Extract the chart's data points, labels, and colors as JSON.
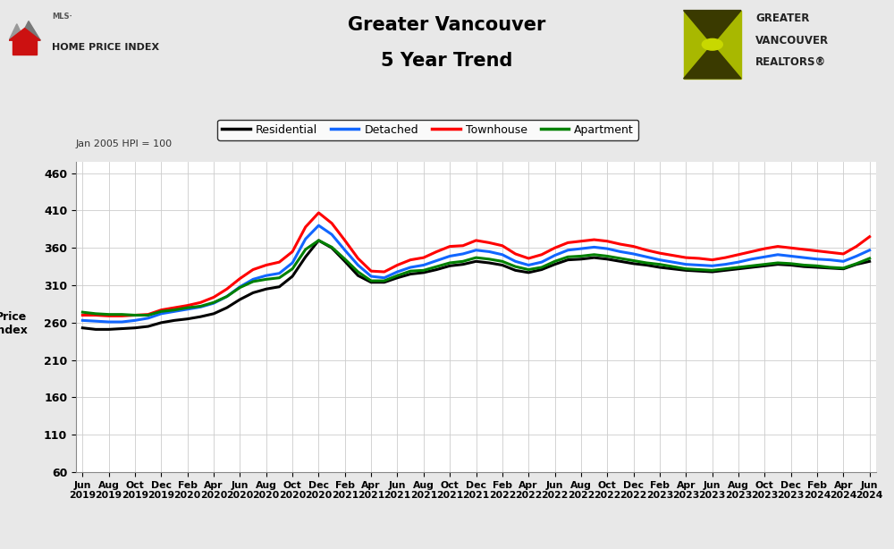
{
  "title_line1": "Greater Vancouver",
  "title_line2": "5 Year Trend",
  "ylabel_top": "Jan 2005 HPI = 100",
  "ylabel_main": "Price\nIndex",
  "background_color": "#e8e8e8",
  "plot_bg_color": "#ffffff",
  "ylim": [
    60,
    475
  ],
  "yticks": [
    60,
    110,
    160,
    210,
    260,
    310,
    360,
    410,
    460
  ],
  "series_colors": {
    "Residential": "#000000",
    "Detached": "#1166ff",
    "Townhouse": "#ff0000",
    "Apartment": "#008000"
  },
  "x_labels": [
    "Jun\n2019",
    "Aug\n2019",
    "Oct\n2019",
    "Dec\n2019",
    "Feb\n2020",
    "Apr\n2020",
    "Jun\n2020",
    "Aug\n2020",
    "Oct\n2020",
    "Dec\n2020",
    "Feb\n2021",
    "Apr\n2021",
    "Jun\n2021",
    "Aug\n2021",
    "Oct\n2021",
    "Dec\n2021",
    "Feb\n2022",
    "Apr\n2022",
    "Jun\n2022",
    "Aug\n2022",
    "Oct\n2022",
    "Dec\n2022",
    "Feb\n2023",
    "Apr\n2023",
    "Jun\n2023",
    "Aug\n2023",
    "Oct\n2023",
    "Dec\n2023",
    "Feb\n2024",
    "Apr\n2024",
    "Jun\n2024"
  ],
  "residential": [
    253,
    251,
    251,
    252,
    253,
    255,
    260,
    263,
    265,
    268,
    272,
    280,
    291,
    300,
    305,
    308,
    322,
    348,
    370,
    360,
    342,
    323,
    314,
    314,
    320,
    325,
    327,
    331,
    336,
    338,
    342,
    340,
    337,
    330,
    327,
    331,
    338,
    344,
    345,
    347,
    345,
    342,
    339,
    337,
    334,
    332,
    330,
    329,
    328,
    330,
    332,
    334,
    336,
    338,
    337,
    335,
    334,
    333,
    332,
    338,
    342
  ],
  "detached": [
    263,
    262,
    261,
    261,
    263,
    266,
    272,
    275,
    278,
    281,
    286,
    295,
    308,
    318,
    323,
    326,
    340,
    372,
    390,
    378,
    357,
    337,
    322,
    320,
    328,
    334,
    337,
    343,
    349,
    352,
    357,
    355,
    351,
    342,
    337,
    341,
    350,
    357,
    359,
    361,
    359,
    355,
    352,
    348,
    344,
    341,
    338,
    337,
    336,
    338,
    341,
    345,
    348,
    351,
    349,
    347,
    345,
    344,
    342,
    349,
    357
  ],
  "townhouse": [
    270,
    270,
    269,
    269,
    270,
    271,
    277,
    280,
    283,
    287,
    294,
    305,
    319,
    331,
    337,
    341,
    355,
    388,
    407,
    393,
    370,
    346,
    329,
    328,
    337,
    344,
    347,
    355,
    362,
    363,
    370,
    367,
    363,
    352,
    346,
    351,
    360,
    367,
    369,
    371,
    369,
    365,
    362,
    357,
    353,
    350,
    347,
    346,
    344,
    347,
    351,
    355,
    359,
    362,
    360,
    358,
    356,
    354,
    352,
    362,
    375
  ],
  "apartment": [
    274,
    272,
    271,
    271,
    270,
    270,
    275,
    277,
    280,
    282,
    287,
    295,
    307,
    315,
    318,
    320,
    332,
    358,
    370,
    361,
    345,
    328,
    316,
    316,
    323,
    329,
    330,
    335,
    340,
    342,
    347,
    345,
    342,
    335,
    331,
    334,
    342,
    348,
    349,
    351,
    349,
    346,
    343,
    340,
    338,
    335,
    332,
    331,
    330,
    332,
    334,
    336,
    338,
    340,
    339,
    337,
    336,
    334,
    333,
    339,
    346
  ]
}
